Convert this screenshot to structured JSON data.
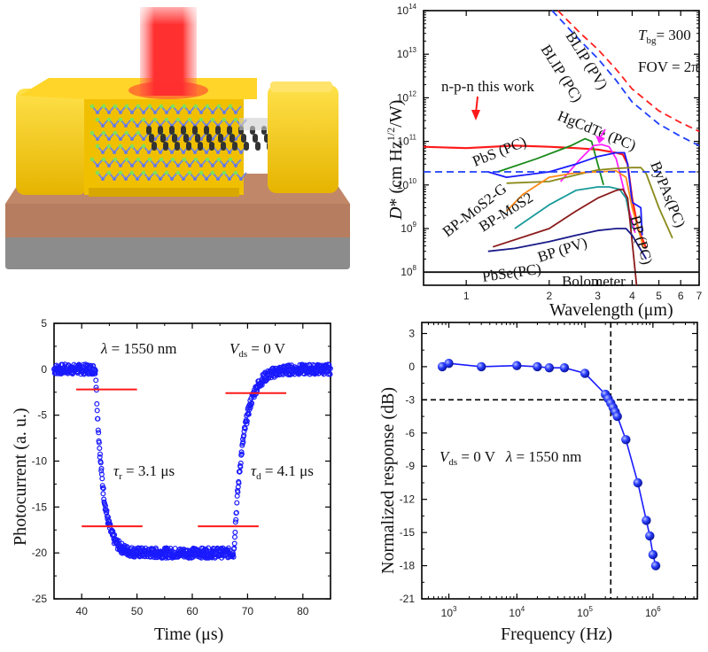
{
  "illustration": {
    "description": "3D schematic of n-p-n heterojunction photodetector under red laser illumination",
    "colors": {
      "electrode": "#f2c200",
      "substrate_top": "#b07a5e",
      "substrate_bottom": "#8e8e8e",
      "laser": "#ff2a2a"
    }
  },
  "chart_data": [
    {
      "id": "detectivity",
      "type": "line",
      "xscale": "log",
      "yscale": "log",
      "xlabel": "Wavelength (μm)",
      "ylabel": "D* (cm Hz^1/2/W)",
      "xlim": [
        0.7,
        7
      ],
      "ylim": [
        50000000.0,
        100000000000000.0
      ],
      "xticks": [
        1,
        2,
        3,
        4,
        5,
        6,
        7
      ],
      "xtick_labels": [
        "1",
        "2",
        "3",
        "4",
        "5",
        "6",
        "7"
      ],
      "yticks": [
        100000000.0,
        1000000000.0,
        10000000000.0,
        100000000000.0,
        1000000000000.0,
        10000000000000.0,
        100000000000000.0
      ],
      "ytick_labels": [
        "10^8",
        "10^9",
        "10^10",
        "10^11",
        "10^12",
        "10^13",
        "10^14"
      ],
      "annotations": [
        "T_bg = 300",
        "FOV = 2π",
        "n-p-n this work"
      ],
      "series": [
        {
          "name": "BLIP (PV)",
          "color": "#ff2020",
          "dash": true,
          "x": [
            2.15,
            2.6,
            3.0,
            3.5,
            4.0,
            5.0,
            6.0,
            7.0
          ],
          "y": [
            100000000000000.0,
            30000000000000.0,
            13000000000000.0,
            4500000000000.0,
            1600000000000.0,
            500000000000.0,
            270000000000.0,
            170000000000.0
          ]
        },
        {
          "name": "BLIP (PC)",
          "color": "#1f3fff",
          "dash": true,
          "x": [
            2.05,
            2.6,
            3.0,
            3.5,
            4.0,
            5.0,
            6.0,
            7.0
          ],
          "y": [
            100000000000000.0,
            20000000000000.0,
            8000000000000.0,
            2500000000000.0,
            800000000000.0,
            250000000000.0,
            130000000000.0,
            80000000000.0
          ]
        },
        {
          "name": "n-p-n this work",
          "color": "#ff1a1a",
          "dash": false,
          "x": [
            0.7,
            1.0,
            1.5,
            2.0,
            2.5,
            3.0,
            3.5,
            3.7,
            3.85,
            4.0,
            4.2,
            4.5
          ],
          "y": [
            75000000000.0,
            70000000000.0,
            80000000000.0,
            75000000000.0,
            70000000000.0,
            65000000000.0,
            55000000000.0,
            50000000000.0,
            30000000000.0,
            5000000000.0,
            1000000000.0,
            350000000.0
          ]
        },
        {
          "name": "PbS (PC)",
          "color": "#1a8a1a",
          "dash": false,
          "x": [
            1.3,
            1.8,
            2.4,
            2.7,
            2.85,
            3.0,
            3.15
          ],
          "y": [
            20000000000.0,
            40000000000.0,
            80000000000.0,
            115000000000.0,
            100000000000.0,
            30000000000.0,
            10000000000.0
          ]
        },
        {
          "name": "HgCdTe (PC)",
          "color": "#ff22ff",
          "dash": false,
          "x": [
            2.2,
            2.6,
            2.9,
            3.1,
            3.3,
            3.5,
            3.8,
            4.1
          ],
          "y": [
            12000000000.0,
            40000000000.0,
            80000000000.0,
            85000000000.0,
            75000000000.0,
            40000000000.0,
            5000000000.0,
            800000000.0
          ]
        },
        {
          "name": "BP (PC)",
          "color": "#1a1aff",
          "dash": false,
          "x": [
            1.2,
            1.4,
            2.0,
            2.5,
            3.0,
            3.5,
            3.75,
            3.85,
            4.0,
            4.3,
            4.35
          ],
          "y": [
            20000000000.0,
            15000000000.0,
            20000000000.0,
            30000000000.0,
            45000000000.0,
            55000000000.0,
            55000000000.0,
            30000000000.0,
            4000000000.0,
            3000000000.0,
            700000000.0
          ]
        },
        {
          "name": "B_yP_xAs (PC)",
          "color": "#8a8a1a",
          "dash": false,
          "x": [
            1.4,
            2.0,
            2.6,
            3.0,
            3.5,
            4.0,
            4.3,
            4.5,
            5.0,
            5.6
          ],
          "y": [
            11000000000.0,
            12000000000.0,
            18000000000.0,
            22000000000.0,
            24000000000.0,
            25000000000.0,
            25000000000.0,
            18000000000.0,
            3000000000.0,
            600000000.0
          ]
        },
        {
          "name": "BP-MoS2-G",
          "color": "#ff8a1a",
          "dash": false,
          "x": [
            1.4,
            1.6,
            2.0,
            2.5,
            3.0,
            3.5,
            3.8,
            4.0,
            4.3,
            4.4
          ],
          "y": [
            2500000000.0,
            6000000000.0,
            15000000000.0,
            19000000000.0,
            20000000000.0,
            21000000000.0,
            15000000000.0,
            3000000000.0,
            600000000.0,
            350000000.0
          ]
        },
        {
          "name": "BP-MoS2",
          "color": "#1a9a9a",
          "dash": false,
          "x": [
            1.5,
            2.0,
            2.5,
            3.0,
            3.3,
            3.6,
            3.8,
            4.0
          ],
          "y": [
            1000000000.0,
            3500000000.0,
            7500000000.0,
            9000000000.0,
            9000000000.0,
            8000000000.0,
            5000000000.0,
            1000000000.0
          ]
        },
        {
          "name": "BP (PV)",
          "color": "#8a1a1a",
          "dash": false,
          "x": [
            1.25,
            2.0,
            2.5,
            3.0,
            3.5,
            3.7,
            3.85,
            4.0,
            4.15
          ],
          "y": [
            380000000.0,
            1000000000.0,
            2500000000.0,
            5000000000.0,
            7500000000.0,
            8000000000.0,
            5000000000.0,
            500000000.0,
            50000000.0
          ]
        },
        {
          "name": "PbSe(PC)",
          "color": "#1a1a8a",
          "dash": false,
          "x": [
            1.2,
            1.5,
            2.0,
            2.5,
            3.0,
            3.5,
            3.8,
            4.0,
            4.5
          ],
          "y": [
            300000000.0,
            350000000.0,
            500000000.0,
            700000000.0,
            900000000.0,
            1000000000.0,
            1000000000.0,
            700000000.0,
            200000000.0
          ]
        },
        {
          "name": "Bolometer",
          "color": "#111111",
          "dash": false,
          "x": [
            0.7,
            7.0
          ],
          "y": [
            100000000.0,
            100000000.0
          ]
        },
        {
          "name": "reference",
          "color": "#1f3fff",
          "dash": true,
          "x": [
            0.7,
            7.0
          ],
          "y": [
            20000000000.0,
            20000000000.0
          ]
        }
      ],
      "labels": [
        {
          "text": "BLIP (PV)",
          "color": "#ff2020"
        },
        {
          "text": "BLIP (PC)",
          "color": "#1f3fff"
        },
        {
          "text": "n-p-n this work",
          "color": "#ff1a1a"
        },
        {
          "text": "HgCdTe (PC)",
          "color": "#ff22ff"
        },
        {
          "text": "PbS (PC)",
          "color": "#1a8a1a"
        },
        {
          "text": "BP-MoS2-G",
          "color": "#ff8a1a"
        },
        {
          "text": "BP-MoS2",
          "color": "#1a9a9a"
        },
        {
          "text": "BP (PV)",
          "color": "#8a1a1a"
        },
        {
          "text": "PbSe(PC)",
          "color": "#1a1a8a"
        },
        {
          "text": "Bolometer",
          "color": "#111111"
        },
        {
          "text": "BP (PC)",
          "color": "#1a1aff"
        },
        {
          "text": "ByPAs(PC)",
          "color": "#8a8a1a"
        }
      ],
      "text_values": {
        "tbg": "= 300",
        "fov": "FOV = 2π"
      }
    },
    {
      "id": "transient",
      "type": "scatter",
      "xlabel": "Time (μs)",
      "ylabel": "Photocurrent (a. u.)",
      "xlim": [
        35,
        85
      ],
      "ylim": [
        -25,
        5
      ],
      "xticks": [
        40,
        50,
        60,
        70,
        80
      ],
      "yticks": [
        5,
        0,
        -5,
        -10,
        -15,
        -20,
        -25
      ],
      "annotations": [
        "λ = 1550 nm",
        "V_ds = 0 V",
        "τ_r = 3.1 μs",
        "τ_d = 4.1 μs"
      ],
      "rise_time_us": 3.1,
      "decay_time_us": 4.1,
      "color": "#1a1aff",
      "model": {
        "on_level": 0,
        "off_level": -20,
        "fall_start": 42.5,
        "rise_start": 67.5,
        "tau_fall": 1.3,
        "tau_rise": 1.8
      },
      "threshold_lines": [
        {
          "x": [
            39,
            50
          ],
          "y": -2.2
        },
        {
          "x": [
            40,
            51
          ],
          "y": -17.1
        },
        {
          "x": [
            61,
            72
          ],
          "y": -17.1
        },
        {
          "x": [
            66,
            77
          ],
          "y": -2.6
        }
      ],
      "threshold_color": "#ff1a1a"
    },
    {
      "id": "frequency",
      "type": "line",
      "xscale": "log",
      "xlabel": "Frequency (Hz)",
      "ylabel": "Normalized response (dB)",
      "xlim": [
        400,
        4500000
      ],
      "ylim": [
        -21,
        4
      ],
      "xticks": [
        1000,
        10000,
        100000,
        1000000
      ],
      "xtick_labels": [
        "10^3",
        "10^4",
        "10^5",
        "10^6"
      ],
      "yticks": [
        3,
        0,
        -3,
        -6,
        -9,
        -12,
        -15,
        -18,
        -21
      ],
      "annotations": [
        "V_ds = 0 V",
        "λ = 1550 nm"
      ],
      "x": [
        800,
        1000,
        3000,
        10000,
        20000,
        30000,
        50000,
        100000,
        200000,
        220000,
        240000,
        260000,
        280000,
        300000,
        400000,
        600000,
        800000,
        900000,
        1000000,
        1100000
      ],
      "y": [
        0,
        0.3,
        0,
        0.1,
        0,
        -0.1,
        -0.1,
        -0.6,
        -2.5,
        -2.9,
        -3.3,
        -3.7,
        -4.1,
        -4.5,
        -6.6,
        -10.5,
        -13.9,
        -15.3,
        -17.0,
        -18.0
      ],
      "cutoff_hz": 240000,
      "cutoff_db": -3,
      "color": "#1a1aff"
    }
  ]
}
